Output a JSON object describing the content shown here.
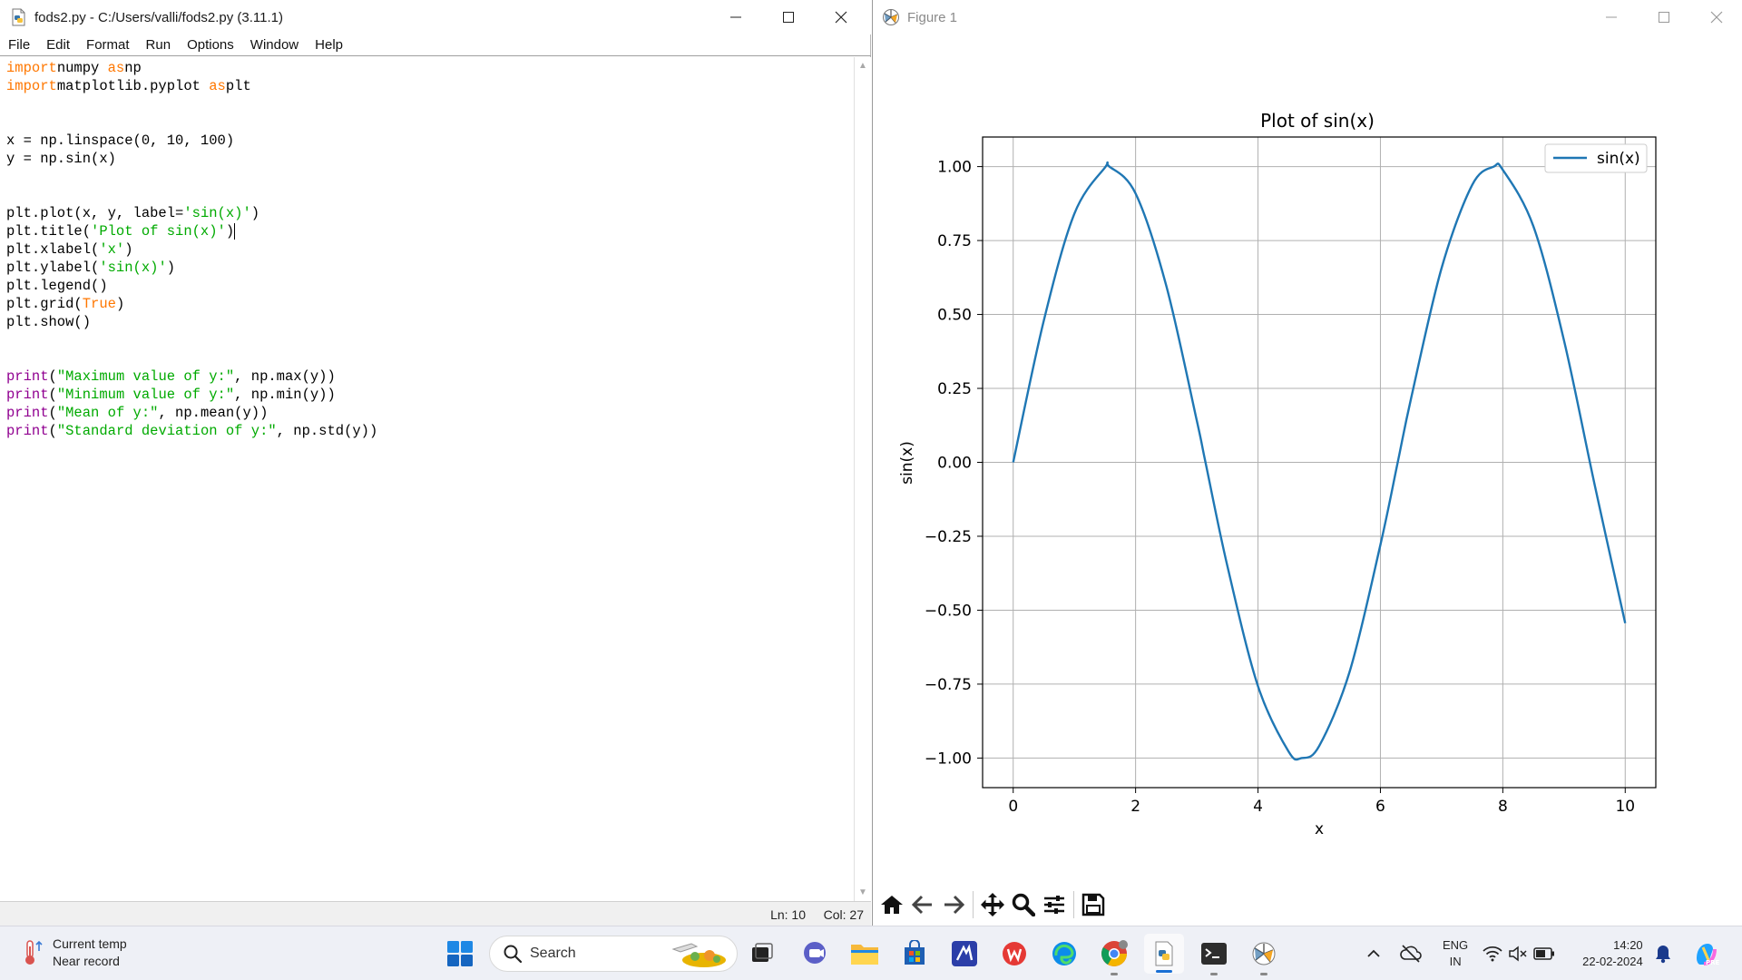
{
  "idle": {
    "title": "fods2.py - C:/Users/valli/fods2.py (3.11.1)",
    "menu": [
      "File",
      "Edit",
      "Format",
      "Run",
      "Options",
      "Window",
      "Help"
    ],
    "status": {
      "line": "Ln: 10",
      "col": "Col: 27"
    }
  },
  "code_lines": [
    [
      [
        "kw",
        "import"
      ],
      [
        "",
        "numpy "
      ],
      [
        "kw",
        "as"
      ],
      [
        "",
        "np"
      ]
    ],
    [
      [
        "kw",
        "import"
      ],
      [
        "",
        "matplotlib.pyplot "
      ],
      [
        "kw",
        "as"
      ],
      [
        "",
        "plt"
      ]
    ],
    [],
    [],
    [
      [
        "",
        "x = np.linspace(0, 10, 100)"
      ]
    ],
    [
      [
        "",
        "y = np.sin(x)"
      ]
    ],
    [],
    [],
    [
      [
        "",
        "plt.plot(x, y, label="
      ],
      [
        "st",
        "'sin(x)'"
      ],
      [
        "",
        ")"
      ]
    ],
    [
      [
        "",
        "plt.title("
      ],
      [
        "st",
        "'Plot of sin(x)'"
      ],
      [
        "",
        ")"
      ],
      [
        "caret",
        ""
      ]
    ],
    [
      [
        "",
        "plt.xlabel("
      ],
      [
        "st",
        "'x'"
      ],
      [
        "",
        ")"
      ]
    ],
    [
      [
        "",
        "plt.ylabel("
      ],
      [
        "st",
        "'sin(x)'"
      ],
      [
        "",
        ")"
      ]
    ],
    [
      [
        "",
        "plt.legend()"
      ]
    ],
    [
      [
        "",
        "plt.grid("
      ],
      [
        "kw",
        "True"
      ],
      [
        "",
        ")"
      ]
    ],
    [
      [
        "",
        "plt.show()"
      ]
    ],
    [],
    [],
    [
      [
        "bi",
        "print"
      ],
      [
        "",
        "("
      ],
      [
        "st",
        "\"Maximum value of y:\""
      ],
      [
        "",
        ", np.max(y))"
      ]
    ],
    [
      [
        "bi",
        "print"
      ],
      [
        "",
        "("
      ],
      [
        "st",
        "\"Minimum value of y:\""
      ],
      [
        "",
        ", np.min(y))"
      ]
    ],
    [
      [
        "bi",
        "print"
      ],
      [
        "",
        "("
      ],
      [
        "st",
        "\"Mean of y:\""
      ],
      [
        "",
        ", np.mean(y))"
      ]
    ],
    [
      [
        "bi",
        "print"
      ],
      [
        "",
        "("
      ],
      [
        "st",
        "\"Standard deviation of y:\""
      ],
      [
        "",
        ", np.std(y))"
      ]
    ]
  ],
  "figure": {
    "window_title": "Figure 1",
    "toolbar": [
      "home-icon",
      "back-icon",
      "forward-icon",
      "pan-icon",
      "zoom-icon",
      "configure-subplots-icon",
      "save-icon"
    ]
  },
  "chart_data": {
    "type": "line",
    "title": "Plot of sin(x)",
    "xlabel": "x",
    "ylabel": "sin(x)",
    "xlim": [
      -0.5,
      10.5
    ],
    "ylim": [
      -1.1,
      1.1
    ],
    "xticks": [
      0,
      2,
      4,
      6,
      8,
      10
    ],
    "xtick_labels": [
      "0",
      "2",
      "4",
      "6",
      "8",
      "10"
    ],
    "yticks": [
      -1.0,
      -0.75,
      -0.5,
      -0.25,
      0.0,
      0.25,
      0.5,
      0.75,
      1.0
    ],
    "ytick_labels": [
      "−1.00",
      "−0.75",
      "−0.50",
      "−0.25",
      "0.00",
      "0.25",
      "0.50",
      "0.75",
      "1.00"
    ],
    "grid": true,
    "legend_position": "top-right",
    "color": "#1f77b4",
    "series": [
      {
        "name": "sin(x)",
        "x": [
          0,
          0.5,
          1.0,
          1.5,
          1.571,
          2.0,
          2.5,
          3.0,
          3.142,
          3.5,
          4.0,
          4.5,
          4.712,
          5.0,
          5.5,
          6.0,
          6.283,
          6.5,
          7.0,
          7.5,
          7.854,
          8.0,
          8.5,
          9.0,
          9.5,
          10.0
        ],
        "values": [
          0.0,
          0.479,
          0.841,
          0.997,
          1.0,
          0.909,
          0.598,
          0.141,
          0.0,
          -0.351,
          -0.757,
          -0.978,
          -1.0,
          -0.959,
          -0.706,
          -0.279,
          0.0,
          0.215,
          0.657,
          0.938,
          1.0,
          0.989,
          0.798,
          0.412,
          -0.075,
          -0.544
        ]
      }
    ]
  },
  "taskbar": {
    "weather_line1": "Current temp",
    "weather_line2": "Near record",
    "search_placeholder": "Search",
    "lang_line1": "ENG",
    "lang_line2": "IN",
    "time": "14:20",
    "date": "22-02-2024"
  }
}
